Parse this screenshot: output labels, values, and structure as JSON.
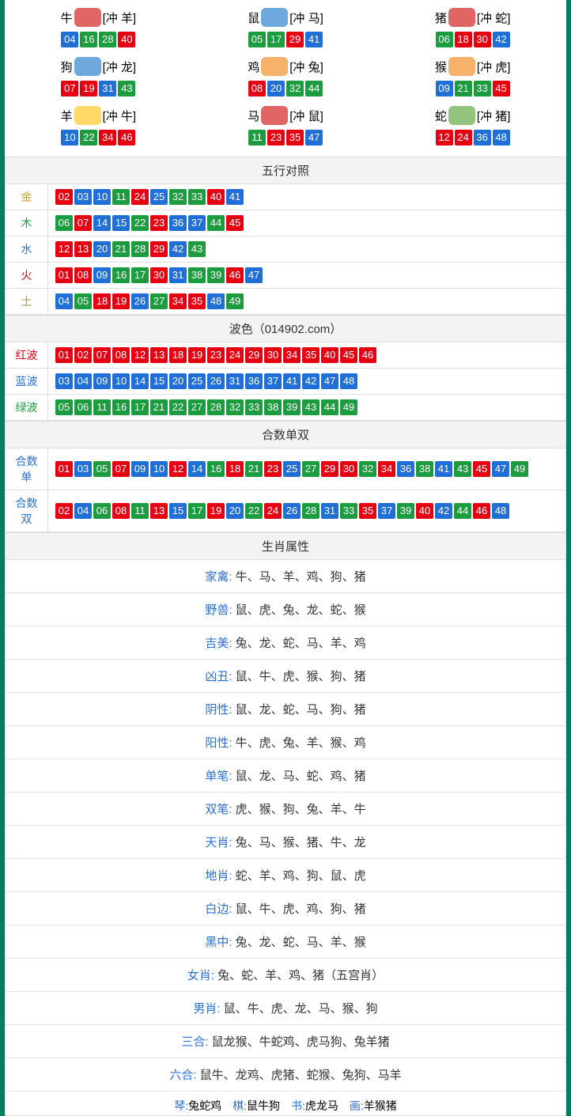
{
  "colors": {
    "red": "#e60012",
    "blue": "#1f6fd6",
    "green": "#1a9c3f",
    "label_gold": "#c9a227",
    "label_green": "#1a9c3f",
    "label_blue": "#2a6fd6",
    "label_red": "#e60012",
    "label_brown": "#b08a3e",
    "icon_red": "#e06666",
    "icon_blue": "#6fa8dc",
    "icon_orange": "#f6b26b",
    "icon_green": "#93c47d",
    "icon_yellow": "#ffd966"
  },
  "zodiac": [
    {
      "name": "牛",
      "conflict": "[冲 羊]",
      "icon": "icon_red",
      "nums": [
        {
          "n": "04",
          "c": "blue"
        },
        {
          "n": "16",
          "c": "green"
        },
        {
          "n": "28",
          "c": "green"
        },
        {
          "n": "40",
          "c": "red"
        }
      ]
    },
    {
      "name": "鼠",
      "conflict": "[冲 马]",
      "icon": "icon_blue",
      "nums": [
        {
          "n": "05",
          "c": "green"
        },
        {
          "n": "17",
          "c": "green"
        },
        {
          "n": "29",
          "c": "red"
        },
        {
          "n": "41",
          "c": "blue"
        }
      ]
    },
    {
      "name": "猪",
      "conflict": "[冲 蛇]",
      "icon": "icon_red",
      "nums": [
        {
          "n": "06",
          "c": "green"
        },
        {
          "n": "18",
          "c": "red"
        },
        {
          "n": "30",
          "c": "red"
        },
        {
          "n": "42",
          "c": "blue"
        }
      ]
    },
    {
      "name": "狗",
      "conflict": "[冲 龙]",
      "icon": "icon_blue",
      "nums": [
        {
          "n": "07",
          "c": "red"
        },
        {
          "n": "19",
          "c": "red"
        },
        {
          "n": "31",
          "c": "blue"
        },
        {
          "n": "43",
          "c": "green"
        }
      ]
    },
    {
      "name": "鸡",
      "conflict": "[冲 兔]",
      "icon": "icon_orange",
      "nums": [
        {
          "n": "08",
          "c": "red"
        },
        {
          "n": "20",
          "c": "blue"
        },
        {
          "n": "32",
          "c": "green"
        },
        {
          "n": "44",
          "c": "green"
        }
      ]
    },
    {
      "name": "猴",
      "conflict": "[冲 虎]",
      "icon": "icon_orange",
      "nums": [
        {
          "n": "09",
          "c": "blue"
        },
        {
          "n": "21",
          "c": "green"
        },
        {
          "n": "33",
          "c": "green"
        },
        {
          "n": "45",
          "c": "red"
        }
      ]
    },
    {
      "name": "羊",
      "conflict": "[冲 牛]",
      "icon": "icon_yellow",
      "nums": [
        {
          "n": "10",
          "c": "blue"
        },
        {
          "n": "22",
          "c": "green"
        },
        {
          "n": "34",
          "c": "red"
        },
        {
          "n": "46",
          "c": "red"
        }
      ]
    },
    {
      "name": "马",
      "conflict": "[冲 鼠]",
      "icon": "icon_red",
      "nums": [
        {
          "n": "11",
          "c": "green"
        },
        {
          "n": "23",
          "c": "red"
        },
        {
          "n": "35",
          "c": "red"
        },
        {
          "n": "47",
          "c": "blue"
        }
      ]
    },
    {
      "name": "蛇",
      "conflict": "[冲 猪]",
      "icon": "icon_green",
      "nums": [
        {
          "n": "12",
          "c": "red"
        },
        {
          "n": "24",
          "c": "red"
        },
        {
          "n": "36",
          "c": "blue"
        },
        {
          "n": "48",
          "c": "blue"
        }
      ]
    }
  ],
  "sections": {
    "wuxing_title": "五行对照",
    "bose_title": "波色（014902.com）",
    "heshu_title": "合数单双",
    "shengxiao_title": "生肖属性"
  },
  "wuxing_rows": [
    {
      "label": "金",
      "label_color": "label_gold",
      "nums": [
        {
          "n": "02",
          "c": "red"
        },
        {
          "n": "03",
          "c": "blue"
        },
        {
          "n": "10",
          "c": "blue"
        },
        {
          "n": "11",
          "c": "green"
        },
        {
          "n": "24",
          "c": "red"
        },
        {
          "n": "25",
          "c": "blue"
        },
        {
          "n": "32",
          "c": "green"
        },
        {
          "n": "33",
          "c": "green"
        },
        {
          "n": "40",
          "c": "red"
        },
        {
          "n": "41",
          "c": "blue"
        }
      ]
    },
    {
      "label": "木",
      "label_color": "label_green",
      "nums": [
        {
          "n": "06",
          "c": "green"
        },
        {
          "n": "07",
          "c": "red"
        },
        {
          "n": "14",
          "c": "blue"
        },
        {
          "n": "15",
          "c": "blue"
        },
        {
          "n": "22",
          "c": "green"
        },
        {
          "n": "23",
          "c": "red"
        },
        {
          "n": "36",
          "c": "blue"
        },
        {
          "n": "37",
          "c": "blue"
        },
        {
          "n": "44",
          "c": "green"
        },
        {
          "n": "45",
          "c": "red"
        }
      ]
    },
    {
      "label": "水",
      "label_color": "label_blue",
      "nums": [
        {
          "n": "12",
          "c": "red"
        },
        {
          "n": "13",
          "c": "red"
        },
        {
          "n": "20",
          "c": "blue"
        },
        {
          "n": "21",
          "c": "green"
        },
        {
          "n": "28",
          "c": "green"
        },
        {
          "n": "29",
          "c": "red"
        },
        {
          "n": "42",
          "c": "blue"
        },
        {
          "n": "43",
          "c": "green"
        }
      ]
    },
    {
      "label": "火",
      "label_color": "label_red",
      "nums": [
        {
          "n": "01",
          "c": "red"
        },
        {
          "n": "08",
          "c": "red"
        },
        {
          "n": "09",
          "c": "blue"
        },
        {
          "n": "16",
          "c": "green"
        },
        {
          "n": "17",
          "c": "green"
        },
        {
          "n": "30",
          "c": "red"
        },
        {
          "n": "31",
          "c": "blue"
        },
        {
          "n": "38",
          "c": "green"
        },
        {
          "n": "39",
          "c": "green"
        },
        {
          "n": "46",
          "c": "red"
        },
        {
          "n": "47",
          "c": "blue"
        }
      ]
    },
    {
      "label": "土",
      "label_color": "label_brown",
      "nums": [
        {
          "n": "04",
          "c": "blue"
        },
        {
          "n": "05",
          "c": "green"
        },
        {
          "n": "18",
          "c": "red"
        },
        {
          "n": "19",
          "c": "red"
        },
        {
          "n": "26",
          "c": "blue"
        },
        {
          "n": "27",
          "c": "green"
        },
        {
          "n": "34",
          "c": "red"
        },
        {
          "n": "35",
          "c": "red"
        },
        {
          "n": "48",
          "c": "blue"
        },
        {
          "n": "49",
          "c": "green"
        }
      ]
    }
  ],
  "bose_rows": [
    {
      "label": "红波",
      "label_color": "label_red",
      "nums": [
        {
          "n": "01",
          "c": "red"
        },
        {
          "n": "02",
          "c": "red"
        },
        {
          "n": "07",
          "c": "red"
        },
        {
          "n": "08",
          "c": "red"
        },
        {
          "n": "12",
          "c": "red"
        },
        {
          "n": "13",
          "c": "red"
        },
        {
          "n": "18",
          "c": "red"
        },
        {
          "n": "19",
          "c": "red"
        },
        {
          "n": "23",
          "c": "red"
        },
        {
          "n": "24",
          "c": "red"
        },
        {
          "n": "29",
          "c": "red"
        },
        {
          "n": "30",
          "c": "red"
        },
        {
          "n": "34",
          "c": "red"
        },
        {
          "n": "35",
          "c": "red"
        },
        {
          "n": "40",
          "c": "red"
        },
        {
          "n": "45",
          "c": "red"
        },
        {
          "n": "46",
          "c": "red"
        }
      ]
    },
    {
      "label": "蓝波",
      "label_color": "label_blue",
      "nums": [
        {
          "n": "03",
          "c": "blue"
        },
        {
          "n": "04",
          "c": "blue"
        },
        {
          "n": "09",
          "c": "blue"
        },
        {
          "n": "10",
          "c": "blue"
        },
        {
          "n": "14",
          "c": "blue"
        },
        {
          "n": "15",
          "c": "blue"
        },
        {
          "n": "20",
          "c": "blue"
        },
        {
          "n": "25",
          "c": "blue"
        },
        {
          "n": "26",
          "c": "blue"
        },
        {
          "n": "31",
          "c": "blue"
        },
        {
          "n": "36",
          "c": "blue"
        },
        {
          "n": "37",
          "c": "blue"
        },
        {
          "n": "41",
          "c": "blue"
        },
        {
          "n": "42",
          "c": "blue"
        },
        {
          "n": "47",
          "c": "blue"
        },
        {
          "n": "48",
          "c": "blue"
        }
      ]
    },
    {
      "label": "绿波",
      "label_color": "label_green",
      "nums": [
        {
          "n": "05",
          "c": "green"
        },
        {
          "n": "06",
          "c": "green"
        },
        {
          "n": "11",
          "c": "green"
        },
        {
          "n": "16",
          "c": "green"
        },
        {
          "n": "17",
          "c": "green"
        },
        {
          "n": "21",
          "c": "green"
        },
        {
          "n": "22",
          "c": "green"
        },
        {
          "n": "27",
          "c": "green"
        },
        {
          "n": "28",
          "c": "green"
        },
        {
          "n": "32",
          "c": "green"
        },
        {
          "n": "33",
          "c": "green"
        },
        {
          "n": "38",
          "c": "green"
        },
        {
          "n": "39",
          "c": "green"
        },
        {
          "n": "43",
          "c": "green"
        },
        {
          "n": "44",
          "c": "green"
        },
        {
          "n": "49",
          "c": "green"
        }
      ]
    }
  ],
  "heshu_rows": [
    {
      "label": "合数单",
      "label_color": "label_blue",
      "nums": [
        {
          "n": "01",
          "c": "red"
        },
        {
          "n": "03",
          "c": "blue"
        },
        {
          "n": "05",
          "c": "green"
        },
        {
          "n": "07",
          "c": "red"
        },
        {
          "n": "09",
          "c": "blue"
        },
        {
          "n": "10",
          "c": "blue"
        },
        {
          "n": "12",
          "c": "red"
        },
        {
          "n": "14",
          "c": "blue"
        },
        {
          "n": "16",
          "c": "green"
        },
        {
          "n": "18",
          "c": "red"
        },
        {
          "n": "21",
          "c": "green"
        },
        {
          "n": "23",
          "c": "red"
        },
        {
          "n": "25",
          "c": "blue"
        },
        {
          "n": "27",
          "c": "green"
        },
        {
          "n": "29",
          "c": "red"
        },
        {
          "n": "30",
          "c": "red"
        },
        {
          "n": "32",
          "c": "green"
        },
        {
          "n": "34",
          "c": "red"
        },
        {
          "n": "36",
          "c": "blue"
        },
        {
          "n": "38",
          "c": "green"
        },
        {
          "n": "41",
          "c": "blue"
        },
        {
          "n": "43",
          "c": "green"
        },
        {
          "n": "45",
          "c": "red"
        },
        {
          "n": "47",
          "c": "blue"
        },
        {
          "n": "49",
          "c": "green"
        }
      ]
    },
    {
      "label": "合数双",
      "label_color": "label_blue",
      "nums": [
        {
          "n": "02",
          "c": "red"
        },
        {
          "n": "04",
          "c": "blue"
        },
        {
          "n": "06",
          "c": "green"
        },
        {
          "n": "08",
          "c": "red"
        },
        {
          "n": "11",
          "c": "green"
        },
        {
          "n": "13",
          "c": "red"
        },
        {
          "n": "15",
          "c": "blue"
        },
        {
          "n": "17",
          "c": "green"
        },
        {
          "n": "19",
          "c": "red"
        },
        {
          "n": "20",
          "c": "blue"
        },
        {
          "n": "22",
          "c": "green"
        },
        {
          "n": "24",
          "c": "red"
        },
        {
          "n": "26",
          "c": "blue"
        },
        {
          "n": "28",
          "c": "green"
        },
        {
          "n": "31",
          "c": "blue"
        },
        {
          "n": "33",
          "c": "green"
        },
        {
          "n": "35",
          "c": "red"
        },
        {
          "n": "37",
          "c": "blue"
        },
        {
          "n": "39",
          "c": "green"
        },
        {
          "n": "40",
          "c": "red"
        },
        {
          "n": "42",
          "c": "blue"
        },
        {
          "n": "44",
          "c": "green"
        },
        {
          "n": "46",
          "c": "red"
        },
        {
          "n": "48",
          "c": "blue"
        }
      ]
    }
  ],
  "prop_rows": [
    {
      "k": "家禽: ",
      "v": "牛、马、羊、鸡、狗、猪"
    },
    {
      "k": "野兽: ",
      "v": "鼠、虎、兔、龙、蛇、猴"
    },
    {
      "k": "吉美: ",
      "v": "兔、龙、蛇、马、羊、鸡"
    },
    {
      "k": "凶丑: ",
      "v": "鼠、牛、虎、猴、狗、猪"
    },
    {
      "k": "阴性: ",
      "v": "鼠、龙、蛇、马、狗、猪"
    },
    {
      "k": "阳性: ",
      "v": "牛、虎、兔、羊、猴、鸡"
    },
    {
      "k": "单笔: ",
      "v": "鼠、龙、马、蛇、鸡、猪"
    },
    {
      "k": "双笔: ",
      "v": "虎、猴、狗、兔、羊、牛"
    },
    {
      "k": "天肖: ",
      "v": "兔、马、猴、猪、牛、龙"
    },
    {
      "k": "地肖: ",
      "v": "蛇、羊、鸡、狗、鼠、虎"
    },
    {
      "k": "白边: ",
      "v": "鼠、牛、虎、鸡、狗、猪"
    },
    {
      "k": "黑中: ",
      "v": "兔、龙、蛇、马、羊、猴"
    },
    {
      "k": "女肖: ",
      "v": "兔、蛇、羊、鸡、猪（五宫肖）"
    },
    {
      "k": "男肖: ",
      "v": "鼠、牛、虎、龙、马、猴、狗"
    },
    {
      "k": "三合: ",
      "v": "鼠龙猴、牛蛇鸡、虎马狗、兔羊猪"
    },
    {
      "k": "六合: ",
      "v": "鼠牛、龙鸡、虎猪、蛇猴、兔狗、马羊"
    }
  ],
  "bottom": [
    {
      "k": "琴:",
      "v": "兔蛇鸡"
    },
    {
      "k": "棋:",
      "v": "鼠牛狗"
    },
    {
      "k": "书:",
      "v": "虎龙马"
    },
    {
      "k": "画:",
      "v": "羊猴猪"
    }
  ]
}
